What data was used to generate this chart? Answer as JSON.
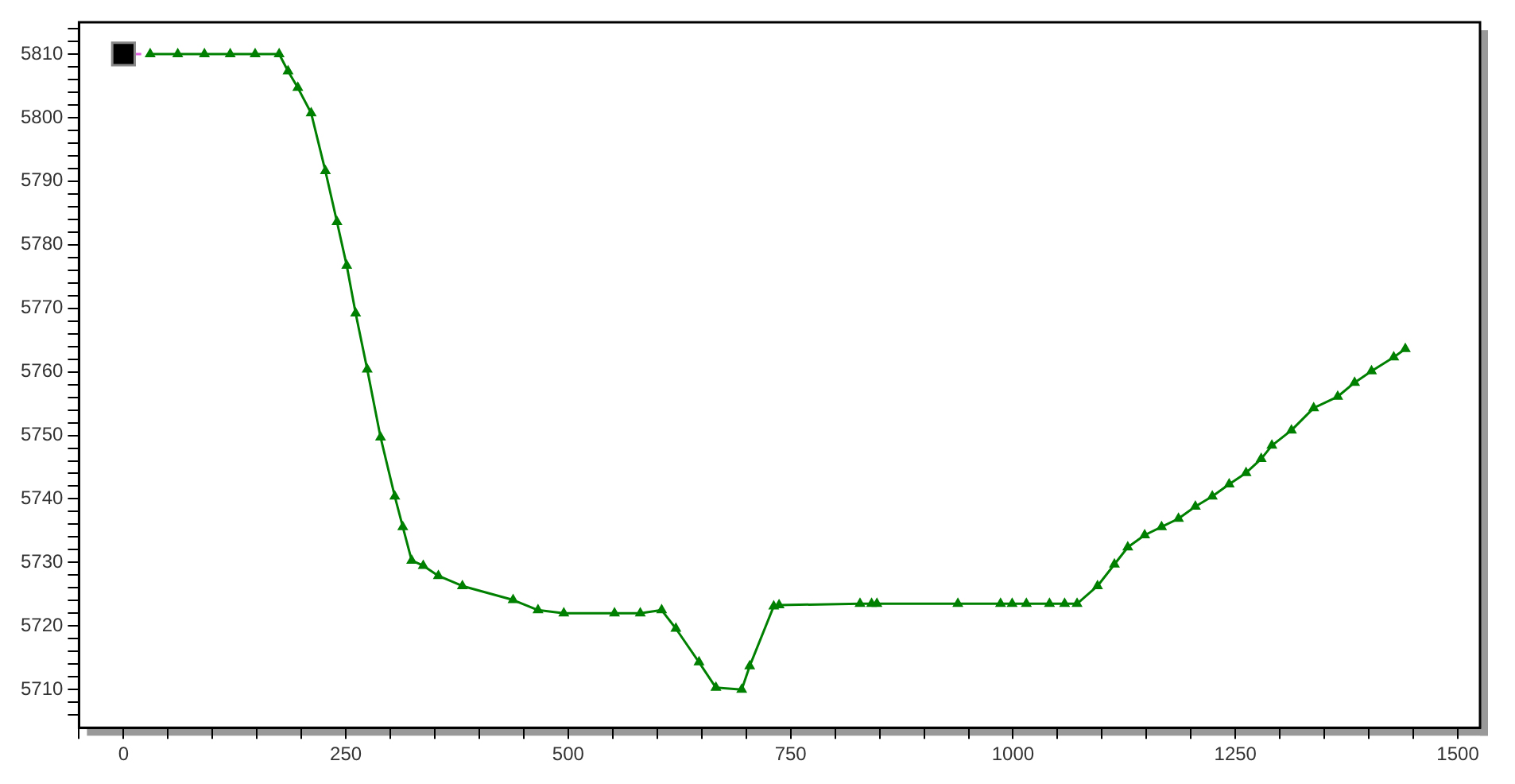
{
  "chart_data": {
    "type": "line",
    "marker": "triangle",
    "grid": false,
    "legend": false,
    "xlim": [
      -50,
      1525
    ],
    "ylim": [
      5704,
      5815
    ],
    "xticks": [
      {
        "value": -50,
        "label": null
      },
      0,
      {
        "value": 50,
        "label": null
      },
      {
        "value": 100,
        "label": null
      },
      {
        "value": 150,
        "label": null
      },
      {
        "value": 200,
        "label": null
      },
      250,
      {
        "value": 300,
        "label": null
      },
      {
        "value": 350,
        "label": null
      },
      {
        "value": 400,
        "label": null
      },
      {
        "value": 450,
        "label": null
      },
      500,
      {
        "value": 550,
        "label": null
      },
      {
        "value": 600,
        "label": null
      },
      {
        "value": 650,
        "label": null
      },
      {
        "value": 700,
        "label": null
      },
      750,
      {
        "value": 800,
        "label": null
      },
      {
        "value": 850,
        "label": null
      },
      {
        "value": 900,
        "label": null
      },
      {
        "value": 950,
        "label": null
      },
      1000,
      {
        "value": 1050,
        "label": null
      },
      {
        "value": 1100,
        "label": null
      },
      {
        "value": 1150,
        "label": null
      },
      {
        "value": 1200,
        "label": null
      },
      1250,
      {
        "value": 1300,
        "label": null
      },
      {
        "value": 1350,
        "label": null
      },
      {
        "value": 1400,
        "label": null
      },
      {
        "value": 1450,
        "label": null
      },
      1500
    ],
    "yticks": [
      {
        "value": 5706,
        "label": null
      },
      {
        "value": 5708,
        "label": null
      },
      5710,
      {
        "value": 5712,
        "label": null
      },
      {
        "value": 5714,
        "label": null
      },
      {
        "value": 5716,
        "label": null
      },
      {
        "value": 5718,
        "label": null
      },
      5720,
      {
        "value": 5722,
        "label": null
      },
      {
        "value": 5724,
        "label": null
      },
      {
        "value": 5726,
        "label": null
      },
      {
        "value": 5728,
        "label": null
      },
      5730,
      {
        "value": 5732,
        "label": null
      },
      {
        "value": 5734,
        "label": null
      },
      {
        "value": 5736,
        "label": null
      },
      {
        "value": 5738,
        "label": null
      },
      5740,
      {
        "value": 5742,
        "label": null
      },
      {
        "value": 5744,
        "label": null
      },
      {
        "value": 5746,
        "label": null
      },
      {
        "value": 5748,
        "label": null
      },
      5750,
      {
        "value": 5752,
        "label": null
      },
      {
        "value": 5754,
        "label": null
      },
      {
        "value": 5756,
        "label": null
      },
      {
        "value": 5758,
        "label": null
      },
      5760,
      {
        "value": 5762,
        "label": null
      },
      {
        "value": 5764,
        "label": null
      },
      {
        "value": 5766,
        "label": null
      },
      {
        "value": 5768,
        "label": null
      },
      5770,
      {
        "value": 5772,
        "label": null
      },
      {
        "value": 5774,
        "label": null
      },
      {
        "value": 5776,
        "label": null
      },
      {
        "value": 5778,
        "label": null
      },
      5780,
      {
        "value": 5782,
        "label": null
      },
      {
        "value": 5784,
        "label": null
      },
      {
        "value": 5786,
        "label": null
      },
      {
        "value": 5788,
        "label": null
      },
      5790,
      {
        "value": 5792,
        "label": null
      },
      {
        "value": 5794,
        "label": null
      },
      {
        "value": 5796,
        "label": null
      },
      {
        "value": 5798,
        "label": null
      },
      5800,
      {
        "value": 5802,
        "label": null
      },
      {
        "value": 5804,
        "label": null
      },
      {
        "value": 5806,
        "label": null
      },
      {
        "value": 5808,
        "label": null
      },
      5810,
      {
        "value": 5812,
        "label": null
      },
      {
        "value": 5814,
        "label": null
      }
    ],
    "series": [
      {
        "color": "#008000",
        "x": [
          30,
          61,
          91,
          120,
          148,
          175,
          185,
          196,
          211,
          227,
          240,
          251,
          261,
          274,
          289,
          305,
          314,
          324,
          337,
          354,
          381,
          438,
          466,
          495,
          552,
          581,
          605,
          621,
          647,
          666,
          695,
          704,
          731,
          737,
          828,
          841,
          847,
          938,
          986,
          999,
          1015,
          1041,
          1058,
          1072,
          1095,
          1114,
          1129,
          1148,
          1167,
          1186,
          1205,
          1224,
          1243,
          1262,
          1279,
          1291,
          1313,
          1338,
          1365,
          1384,
          1403,
          1428,
          1441
        ],
        "values": [
          5810,
          5810,
          5810,
          5810,
          5810,
          5810,
          5807.3,
          5804.7,
          5800.7,
          5791.6,
          5783.6,
          5776.7,
          5769.2,
          5760.4,
          5749.7,
          5740.4,
          5735.6,
          5730.3,
          5729.5,
          5727.9,
          5726.3,
          5724.1,
          5722.5,
          5722,
          5722,
          5722,
          5722.5,
          5719.6,
          5714.3,
          5710.3,
          5710,
          5713.7,
          5723.1,
          5723.3,
          5723.5,
          5723.5,
          5723.5,
          5723.5,
          5723.5,
          5723.5,
          5723.5,
          5723.5,
          5723.5,
          5723.5,
          5726.3,
          5729.7,
          5732.4,
          5734.3,
          5735.6,
          5736.9,
          5738.8,
          5740.4,
          5742.3,
          5744.1,
          5746.3,
          5748.4,
          5750.8,
          5754.3,
          5756.1,
          5758.3,
          5760.1,
          5762.3,
          5763.6
        ]
      },
      {
        "color": "#e060e0",
        "marker": "square",
        "x": [
          0,
          20
        ],
        "values": [
          5810,
          5810
        ]
      }
    ]
  }
}
